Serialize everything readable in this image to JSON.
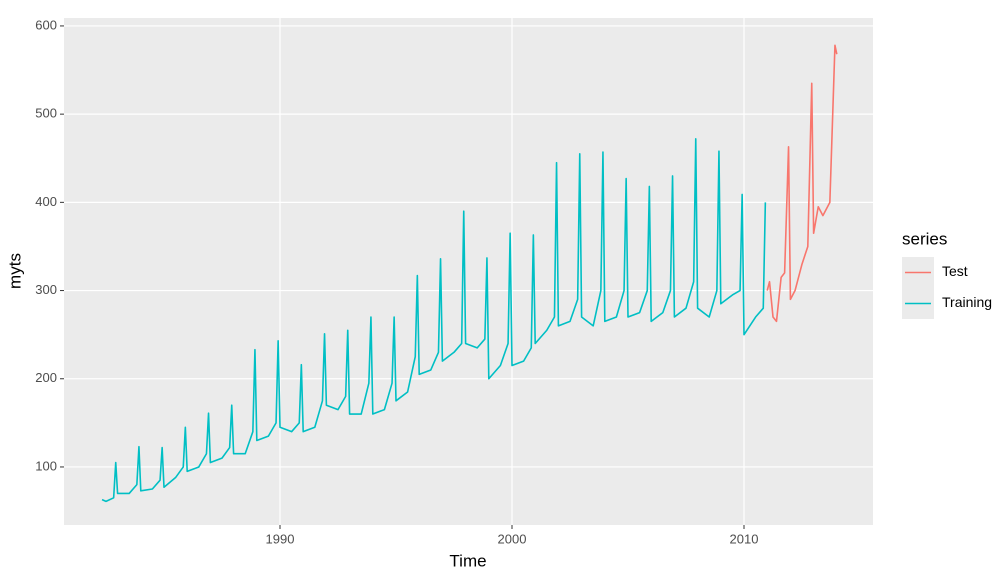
{
  "chart_data": {
    "type": "line",
    "x_label": "Time",
    "y_label": "myts",
    "legend_title": "series",
    "legend_position": "right",
    "grid": true,
    "xlim": [
      1980.69,
      2015.56
    ],
    "ylim": [
      34.2,
      609
    ],
    "xticks": [
      1990,
      2000,
      2010
    ],
    "yticks": [
      100,
      200,
      300,
      400,
      500,
      600
    ],
    "series": [
      {
        "name": "Test",
        "color": "#f8766d",
        "x": [
          2011.0,
          2011.1,
          2011.25,
          2011.4,
          2011.6,
          2011.75,
          2011.92,
          2012.0,
          2012.2,
          2012.5,
          2012.75,
          2012.92,
          2013.0,
          2013.2,
          2013.4,
          2013.7,
          2013.92,
          2014.0
        ],
        "values": [
          300,
          310,
          270,
          265,
          315,
          320,
          463,
          290,
          300,
          330,
          350,
          535,
          365,
          395,
          385,
          400,
          578,
          568
        ]
      },
      {
        "name": "Training",
        "color": "#00bfc4",
        "x": [
          1982.33,
          1982.5,
          1982.83,
          1982.92,
          1983.0,
          1983.5,
          1983.83,
          1983.92,
          1984.0,
          1984.5,
          1984.83,
          1984.92,
          1985.0,
          1985.5,
          1985.83,
          1985.92,
          1986.0,
          1986.5,
          1986.83,
          1986.92,
          1987.0,
          1987.5,
          1987.83,
          1987.92,
          1988.0,
          1988.5,
          1988.83,
          1988.92,
          1989.0,
          1989.5,
          1989.83,
          1989.92,
          1990.0,
          1990.5,
          1990.83,
          1990.92,
          1991.0,
          1991.5,
          1991.83,
          1991.92,
          1992.0,
          1992.5,
          1992.83,
          1992.92,
          1993.0,
          1993.5,
          1993.83,
          1993.92,
          1994.0,
          1994.5,
          1994.83,
          1994.92,
          1995.0,
          1995.5,
          1995.83,
          1995.92,
          1996.0,
          1996.5,
          1996.83,
          1996.92,
          1997.0,
          1997.5,
          1997.83,
          1997.92,
          1998.0,
          1998.5,
          1998.83,
          1998.92,
          1999.0,
          1999.5,
          1999.83,
          1999.92,
          2000.0,
          2000.5,
          2000.83,
          2000.92,
          2001.0,
          2001.5,
          2001.83,
          2001.92,
          2002.0,
          2002.5,
          2002.83,
          2002.92,
          2003.0,
          2003.5,
          2003.83,
          2003.92,
          2004.0,
          2004.5,
          2004.83,
          2004.92,
          2005.0,
          2005.5,
          2005.83,
          2005.92,
          2006.0,
          2006.5,
          2006.83,
          2006.92,
          2007.0,
          2007.5,
          2007.83,
          2007.92,
          2008.0,
          2008.5,
          2008.83,
          2008.92,
          2009.0,
          2009.5,
          2009.83,
          2009.92,
          2010.0,
          2010.5,
          2010.83,
          2010.92
        ],
        "values": [
          63,
          61,
          65,
          105,
          70,
          70,
          80,
          123,
          73,
          75,
          85,
          122,
          77,
          88,
          100,
          145,
          95,
          100,
          115,
          161,
          105,
          110,
          122,
          170,
          115,
          115,
          140,
          233,
          130,
          135,
          150,
          243,
          145,
          140,
          150,
          216,
          140,
          145,
          175,
          251,
          170,
          165,
          180,
          255,
          160,
          160,
          195,
          270,
          160,
          165,
          195,
          270,
          175,
          185,
          225,
          317,
          205,
          210,
          230,
          336,
          220,
          230,
          240,
          390,
          240,
          235,
          245,
          337,
          200,
          215,
          240,
          365,
          215,
          220,
          235,
          363,
          240,
          255,
          270,
          445,
          260,
          265,
          290,
          455,
          270,
          260,
          300,
          457,
          265,
          270,
          300,
          427,
          270,
          275,
          300,
          418,
          265,
          275,
          300,
          430,
          270,
          280,
          310,
          472,
          280,
          270,
          300,
          458,
          285,
          295,
          300,
          409,
          250,
          270,
          280,
          400
        ]
      }
    ]
  }
}
